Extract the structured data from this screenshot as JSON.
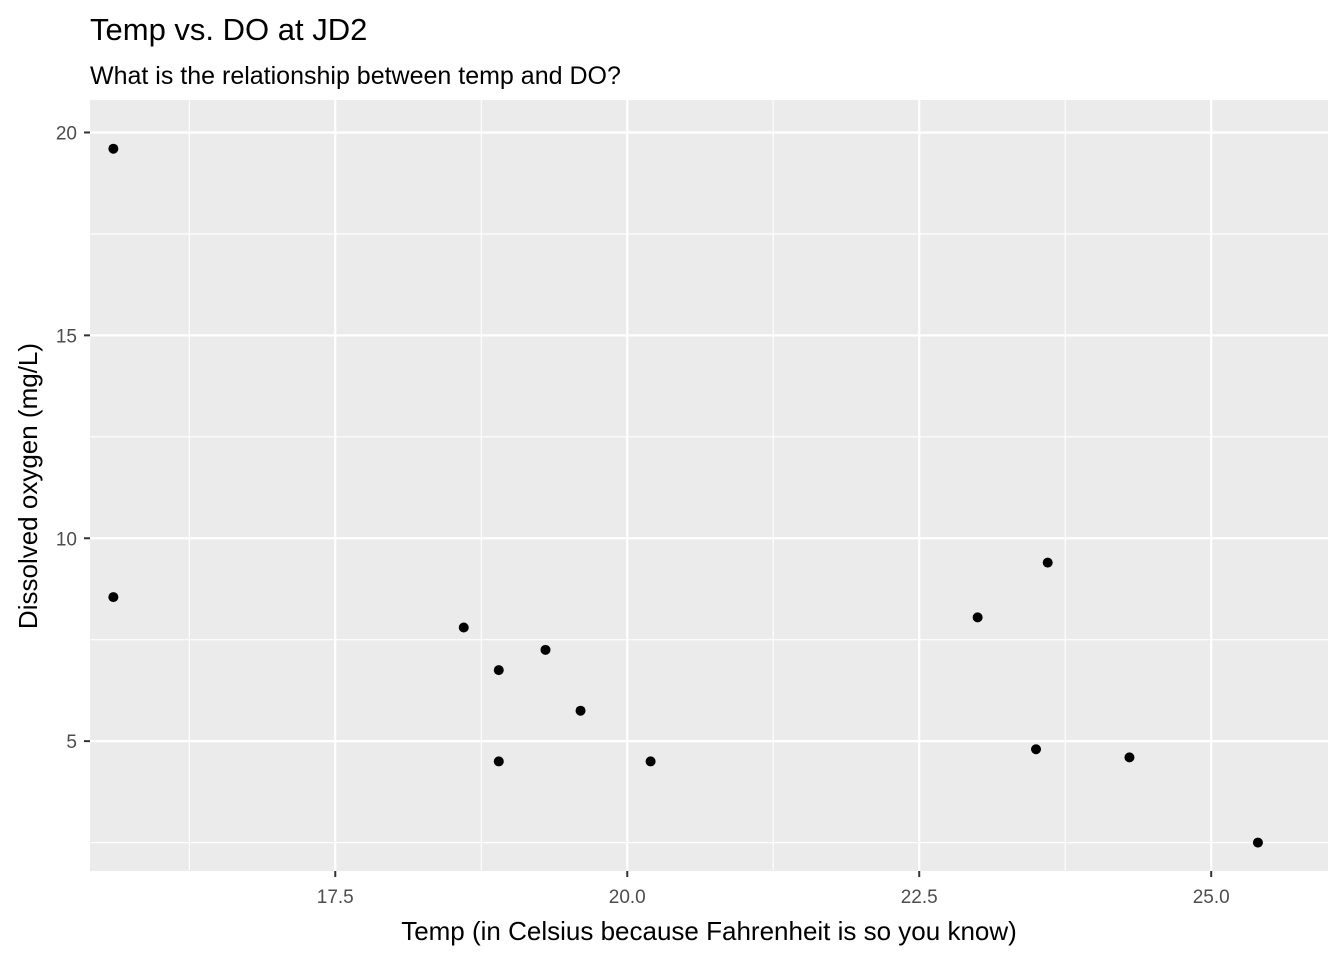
{
  "chart_data": {
    "type": "scatter",
    "title": "Temp vs. DO at JD2",
    "subtitle": "What is the relationship between temp and DO?",
    "xlabel": "Temp (in Celsius because Fahrenheit is so you know)",
    "ylabel": "Dissolved oxygen (mg/L)",
    "xlim": [
      15.4,
      26.0
    ],
    "ylim": [
      1.8,
      20.8
    ],
    "x_ticks": [
      17.5,
      20.0,
      22.5,
      25.0
    ],
    "x_tick_labels": [
      "17.5",
      "20.0",
      "22.5",
      "25.0"
    ],
    "y_ticks": [
      5,
      10,
      15,
      20
    ],
    "y_tick_labels": [
      "5",
      "10",
      "15",
      "20"
    ],
    "grid": true,
    "background": "#ebebeb",
    "grid_color": "#ffffff",
    "point_color": "#000000",
    "series": [
      {
        "x": [
          15.6,
          15.6,
          18.6,
          18.9,
          18.9,
          19.3,
          19.6,
          20.2,
          23.0,
          23.6,
          23.5,
          24.3,
          25.4
        ],
        "y": [
          19.6,
          8.55,
          7.8,
          6.75,
          4.5,
          7.25,
          5.75,
          4.5,
          8.05,
          9.4,
          4.8,
          4.6,
          2.5
        ]
      }
    ]
  }
}
